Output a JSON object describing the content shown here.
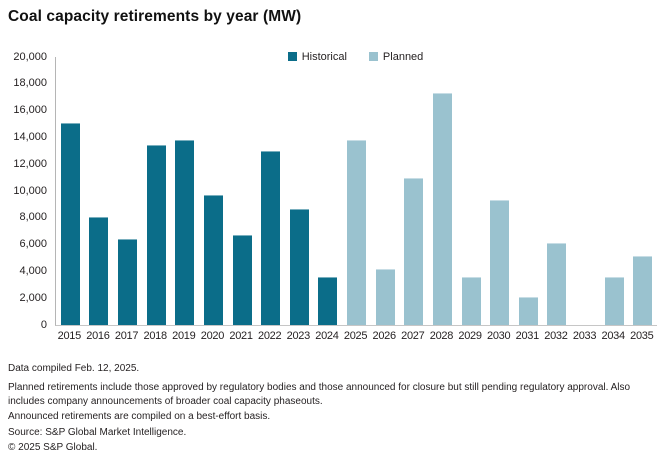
{
  "title": "Coal capacity retirements by year (MW)",
  "legend": {
    "items": [
      {
        "label": "Historical",
        "color": "#0b6d89"
      },
      {
        "label": "Planned",
        "color": "#9ac2cf"
      }
    ]
  },
  "chart_data": {
    "type": "bar",
    "title": "Coal capacity retirements by year (MW)",
    "categories": [
      "2015",
      "2016",
      "2017",
      "2018",
      "2019",
      "2020",
      "2021",
      "2022",
      "2023",
      "2024",
      "2025",
      "2026",
      "2027",
      "2028",
      "2029",
      "2030",
      "2031",
      "2032",
      "2033",
      "2034",
      "2035"
    ],
    "series": [
      {
        "name": "Historical",
        "color": "#0b6d89",
        "values": [
          15100,
          8050,
          6450,
          13450,
          13800,
          9700,
          6750,
          12950,
          8650,
          3600,
          null,
          null,
          null,
          null,
          null,
          null,
          null,
          null,
          null,
          null,
          null
        ]
      },
      {
        "name": "Planned",
        "color": "#9ac2cf",
        "values": [
          null,
          null,
          null,
          null,
          null,
          null,
          null,
          null,
          null,
          null,
          13800,
          4150,
          11000,
          17300,
          3550,
          9350,
          2100,
          6100,
          0,
          3600,
          5150
        ]
      }
    ],
    "xlabel": "",
    "ylabel": "",
    "ylim": [
      0,
      20000
    ],
    "ytick_step": 2000,
    "grid": false,
    "legend_position": "top-center"
  },
  "footnotes": [
    "Data compiled Feb. 12, 2025.",
    "Planned retirements include those approved by regulatory bodies and those announced for closure but still pending regulatory approval. Also includes company announcements of broader coal capacity phaseouts.",
    "Announced retirements are compiled on a best-effort basis.",
    "Source: S&P Global Market Intelligence.",
    "© 2025 S&P Global."
  ]
}
